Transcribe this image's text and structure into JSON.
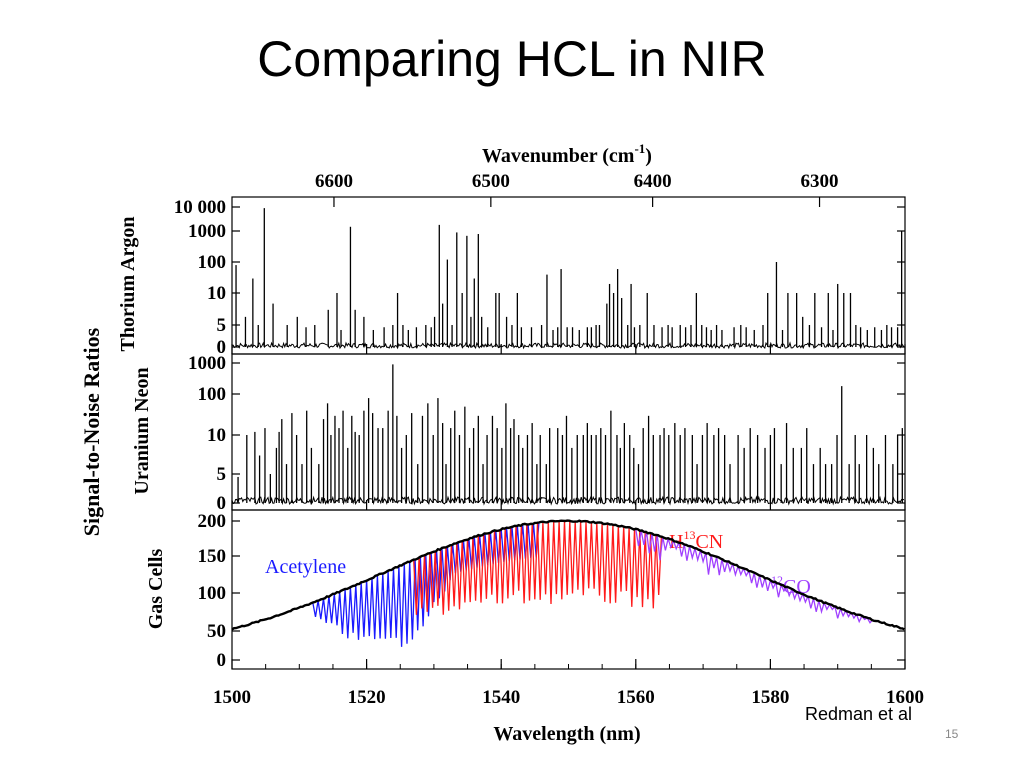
{
  "slide": {
    "title": "Comparing HCL in NIR",
    "citation": "Redman et al",
    "page_number": "15"
  },
  "chart_data": {
    "type": "line",
    "x_axis": {
      "label": "Wavelength (nm)",
      "range": [
        1500,
        1600
      ],
      "ticks": [
        1500,
        1520,
        1540,
        1560,
        1580,
        1600
      ]
    },
    "top_axis": {
      "label_main": "Wavenumber (cm",
      "label_sup": "-1",
      "label_close": ")",
      "ticks": [
        6600,
        6500,
        6400,
        6300
      ]
    },
    "shared_ylabel": "Signal-to-Noise Ratios",
    "panels": [
      {
        "ylabel": "Thorium Argon",
        "ytick_labels": [
          "10 000",
          "1000",
          "100",
          "10",
          "5",
          "0"
        ],
        "ytick_values": [
          10000,
          1000,
          100,
          10,
          5,
          0
        ],
        "line_color": "#000000",
        "lines_nm": [
          [
            1500.6,
            80
          ],
          [
            1502.0,
            6
          ],
          [
            1503.1,
            30
          ],
          [
            1503.9,
            5
          ],
          [
            1504.8,
            9000
          ],
          [
            1506.1,
            8
          ],
          [
            1508.2,
            5
          ],
          [
            1509.7,
            6
          ],
          [
            1511.0,
            4
          ],
          [
            1512.3,
            5
          ],
          [
            1514.3,
            7
          ],
          [
            1515.6,
            10
          ],
          [
            1516.2,
            3
          ],
          [
            1517.6,
            1500
          ],
          [
            1518.3,
            7
          ],
          [
            1519.6,
            6
          ],
          [
            1521.0,
            3
          ],
          [
            1522.6,
            4
          ],
          [
            1523.9,
            5
          ],
          [
            1524.6,
            10
          ],
          [
            1525.4,
            5
          ],
          [
            1526.2,
            3
          ],
          [
            1527.4,
            4
          ],
          [
            1528.8,
            5
          ],
          [
            1529.6,
            4
          ],
          [
            1530.1,
            6
          ],
          [
            1530.8,
            1800
          ],
          [
            1531.3,
            8
          ],
          [
            1532.0,
            120
          ],
          [
            1532.7,
            5
          ],
          [
            1533.4,
            900
          ],
          [
            1534.2,
            10
          ],
          [
            1534.9,
            700
          ],
          [
            1535.5,
            6
          ],
          [
            1536.0,
            30
          ],
          [
            1536.6,
            800
          ],
          [
            1537.1,
            6
          ],
          [
            1538.0,
            4
          ],
          [
            1539.2,
            10
          ],
          [
            1539.7,
            10
          ],
          [
            1540.8,
            6
          ],
          [
            1541.6,
            5
          ],
          [
            1542.4,
            10
          ],
          [
            1543.0,
            4
          ],
          [
            1544.5,
            4
          ],
          [
            1546.0,
            5
          ],
          [
            1546.8,
            40
          ],
          [
            1547.7,
            3
          ],
          [
            1548.4,
            4
          ],
          [
            1548.9,
            60
          ],
          [
            1549.8,
            4
          ],
          [
            1550.6,
            4
          ],
          [
            1551.6,
            3
          ],
          [
            1552.8,
            4
          ],
          [
            1553.4,
            4
          ],
          [
            1554.1,
            5
          ],
          [
            1554.6,
            5
          ],
          [
            1555.7,
            8
          ],
          [
            1556.1,
            20
          ],
          [
            1556.7,
            10
          ],
          [
            1557.3,
            60
          ],
          [
            1557.9,
            9
          ],
          [
            1558.8,
            5
          ],
          [
            1559.3,
            20
          ],
          [
            1559.8,
            4
          ],
          [
            1560.6,
            5
          ],
          [
            1561.7,
            10
          ],
          [
            1562.7,
            5
          ],
          [
            1563.9,
            4
          ],
          [
            1564.8,
            5
          ],
          [
            1565.4,
            4
          ],
          [
            1566.6,
            5
          ],
          [
            1567.4,
            4
          ],
          [
            1568.2,
            5
          ],
          [
            1569.0,
            10
          ],
          [
            1569.8,
            5
          ],
          [
            1570.5,
            4
          ],
          [
            1571.2,
            3
          ],
          [
            1572.0,
            5
          ],
          [
            1572.8,
            3
          ],
          [
            1574.6,
            4
          ],
          [
            1575.6,
            5
          ],
          [
            1576.4,
            4
          ],
          [
            1577.6,
            3
          ],
          [
            1578.9,
            5
          ],
          [
            1579.6,
            10
          ],
          [
            1580.9,
            100
          ],
          [
            1581.8,
            3
          ],
          [
            1582.6,
            10
          ],
          [
            1583.9,
            10
          ],
          [
            1584.8,
            6
          ],
          [
            1585.8,
            5
          ],
          [
            1586.6,
            10
          ],
          [
            1587.6,
            4
          ],
          [
            1588.6,
            10
          ],
          [
            1589.3,
            3
          ],
          [
            1590.0,
            20
          ],
          [
            1590.9,
            10
          ],
          [
            1591.9,
            10
          ],
          [
            1592.7,
            5
          ],
          [
            1593.4,
            4
          ],
          [
            1594.4,
            3
          ],
          [
            1595.5,
            4
          ],
          [
            1596.5,
            3
          ],
          [
            1597.3,
            5
          ],
          [
            1598.0,
            4
          ],
          [
            1598.9,
            4
          ],
          [
            1599.5,
            1000
          ]
        ]
      },
      {
        "ylabel": "Uranium Neon",
        "ytick_labels": [
          "1000",
          "100",
          "10",
          "5",
          "0"
        ],
        "ytick_values": [
          1000,
          100,
          10,
          5,
          0
        ],
        "line_color": "#000000",
        "lines_nm": [
          [
            1500.9,
            4
          ],
          [
            1502.2,
            10
          ],
          [
            1503.4,
            12
          ],
          [
            1504.1,
            7
          ],
          [
            1504.9,
            15
          ],
          [
            1505.7,
            5
          ],
          [
            1506.6,
            8
          ],
          [
            1507.0,
            12
          ],
          [
            1507.4,
            25
          ],
          [
            1508.1,
            6
          ],
          [
            1508.9,
            35
          ],
          [
            1509.6,
            10
          ],
          [
            1510.4,
            6
          ],
          [
            1511.1,
            40
          ],
          [
            1511.8,
            8
          ],
          [
            1512.9,
            6
          ],
          [
            1513.6,
            25
          ],
          [
            1514.2,
            60
          ],
          [
            1514.7,
            10
          ],
          [
            1515.3,
            30
          ],
          [
            1515.9,
            15
          ],
          [
            1516.5,
            40
          ],
          [
            1517.2,
            8
          ],
          [
            1517.8,
            30
          ],
          [
            1518.3,
            12
          ],
          [
            1518.9,
            10
          ],
          [
            1519.6,
            40
          ],
          [
            1520.3,
            80
          ],
          [
            1520.9,
            35
          ],
          [
            1521.7,
            15
          ],
          [
            1522.4,
            15
          ],
          [
            1523.2,
            40
          ],
          [
            1523.9,
            900
          ],
          [
            1524.5,
            30
          ],
          [
            1525.2,
            8
          ],
          [
            1525.9,
            10
          ],
          [
            1526.7,
            35
          ],
          [
            1527.6,
            6
          ],
          [
            1528.3,
            30
          ],
          [
            1529.1,
            60
          ],
          [
            1529.9,
            10
          ],
          [
            1530.6,
            80
          ],
          [
            1531.3,
            20
          ],
          [
            1531.8,
            6
          ],
          [
            1532.5,
            15
          ],
          [
            1533.1,
            40
          ],
          [
            1533.8,
            10
          ],
          [
            1534.6,
            50
          ],
          [
            1535.3,
            8
          ],
          [
            1535.9,
            15
          ],
          [
            1536.6,
            30
          ],
          [
            1537.3,
            6
          ],
          [
            1537.9,
            10
          ],
          [
            1538.7,
            30
          ],
          [
            1539.4,
            15
          ],
          [
            1540.1,
            8
          ],
          [
            1540.7,
            60
          ],
          [
            1541.4,
            15
          ],
          [
            1541.9,
            25
          ],
          [
            1542.6,
            10
          ],
          [
            1543.2,
            8
          ],
          [
            1543.9,
            10
          ],
          [
            1544.6,
            20
          ],
          [
            1545.3,
            6
          ],
          [
            1545.8,
            10
          ],
          [
            1546.7,
            6
          ],
          [
            1547.2,
            15
          ],
          [
            1548.4,
            15
          ],
          [
            1549.1,
            10
          ],
          [
            1549.7,
            30
          ],
          [
            1550.5,
            8
          ],
          [
            1551.3,
            10
          ],
          [
            1552.2,
            10
          ],
          [
            1552.8,
            20
          ],
          [
            1553.4,
            10
          ],
          [
            1554.1,
            10
          ],
          [
            1554.8,
            15
          ],
          [
            1555.5,
            10
          ],
          [
            1556.3,
            40
          ],
          [
            1557.2,
            10
          ],
          [
            1557.7,
            8
          ],
          [
            1558.3,
            20
          ],
          [
            1559.1,
            10
          ],
          [
            1559.7,
            8
          ],
          [
            1560.4,
            6
          ],
          [
            1561.1,
            15
          ],
          [
            1561.9,
            30
          ],
          [
            1562.6,
            10
          ],
          [
            1563.6,
            10
          ],
          [
            1564.2,
            15
          ],
          [
            1564.9,
            10
          ],
          [
            1565.8,
            20
          ],
          [
            1566.6,
            10
          ],
          [
            1567.3,
            15
          ],
          [
            1568.4,
            10
          ],
          [
            1569.1,
            6
          ],
          [
            1569.9,
            10
          ],
          [
            1570.6,
            20
          ],
          [
            1571.6,
            10
          ],
          [
            1572.3,
            15
          ],
          [
            1573.2,
            10
          ],
          [
            1574.0,
            6
          ],
          [
            1575.2,
            10
          ],
          [
            1576.1,
            8
          ],
          [
            1577.0,
            15
          ],
          [
            1578.1,
            10
          ],
          [
            1579.2,
            8
          ],
          [
            1580.0,
            10
          ],
          [
            1580.6,
            15
          ],
          [
            1581.6,
            6
          ],
          [
            1582.4,
            20
          ],
          [
            1583.4,
            8
          ],
          [
            1584.6,
            8
          ],
          [
            1585.4,
            15
          ],
          [
            1586.4,
            6
          ],
          [
            1587.4,
            8
          ],
          [
            1588.2,
            6
          ],
          [
            1589.1,
            6
          ],
          [
            1589.9,
            10
          ],
          [
            1590.6,
            180
          ],
          [
            1591.7,
            6
          ],
          [
            1592.6,
            10
          ],
          [
            1593.2,
            6
          ],
          [
            1594.3,
            10
          ],
          [
            1595.3,
            8
          ],
          [
            1596.1,
            6
          ],
          [
            1597.1,
            10
          ],
          [
            1598.2,
            6
          ],
          [
            1598.9,
            10
          ],
          [
            1599.6,
            15
          ]
        ]
      },
      {
        "ylabel": "Gas Cells",
        "ytick_labels": [
          "200",
          "150",
          "100",
          "50",
          "0"
        ],
        "ytick_values": [
          200,
          150,
          100,
          50,
          0
        ],
        "envelope": {
          "peak_nm": 1550,
          "peak_value": 195,
          "width_nm": 28
        },
        "labels": [
          {
            "name": "Acetylene",
            "color": "#1a1aff"
          },
          {
            "name": "H",
            "sup": "13",
            "suffix": "CN",
            "color": "#ff1a1a"
          },
          {
            "prefix_sup": "12",
            "name": "CO",
            "color": "#a040ff"
          }
        ],
        "gases": [
          {
            "name": "Acetylene",
            "color": "#1a1aff",
            "start_nm": 1512,
            "end_nm": 1545,
            "spacing_nm": 0.8,
            "min_depth": 0.25,
            "max_depth": 0.92
          },
          {
            "name": "H13CN",
            "color": "#ff1a1a",
            "start_nm": 1527,
            "end_nm": 1563,
            "spacing_nm": 0.8,
            "min_depth": 0.3,
            "max_depth": 0.6
          },
          {
            "name": "12CO",
            "color": "#a040ff",
            "start_nm": 1560,
            "end_nm": 1595,
            "spacing_nm": 0.8,
            "min_depth": 0.06,
            "max_depth": 0.22
          }
        ]
      }
    ]
  }
}
